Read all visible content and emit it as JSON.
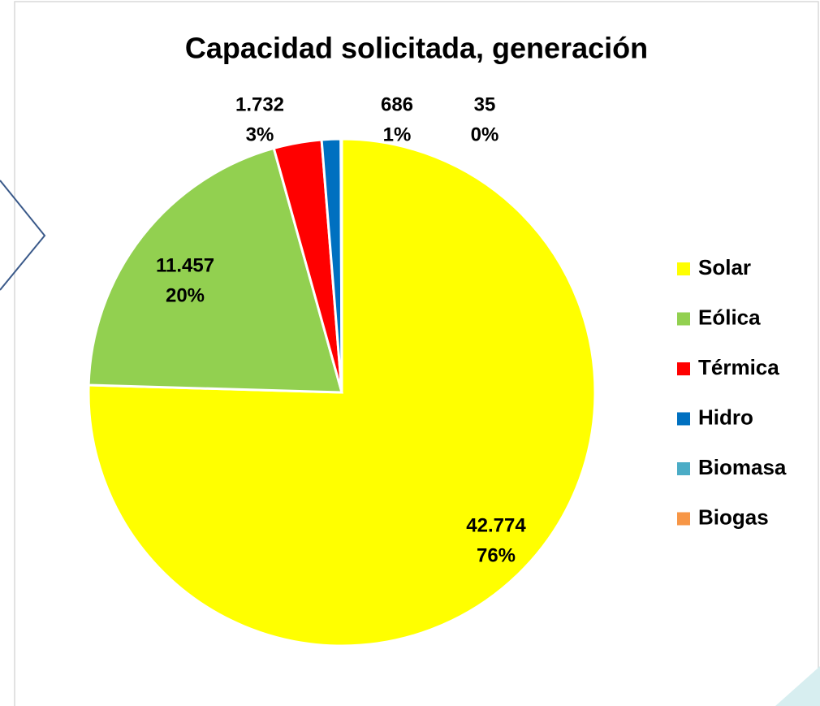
{
  "chart_data": {
    "type": "pie",
    "title": "Capacidad solicitada, generación",
    "categories": [
      "Solar",
      "Eólica",
      "Térmica",
      "Hidro",
      "Biomasa",
      "Biogas"
    ],
    "values": [
      42774,
      11457,
      1732,
      686,
      35,
      0
    ],
    "value_labels": [
      "42.774",
      "11.457",
      "1.732",
      "686",
      "35",
      null
    ],
    "percent_labels": [
      "76%",
      "20%",
      "3%",
      "1%",
      "0%",
      null
    ],
    "colors": [
      "#ffff00",
      "#92d050",
      "#ff0000",
      "#0070c0",
      "#4bacc6",
      "#f79646"
    ],
    "legend": "right"
  }
}
